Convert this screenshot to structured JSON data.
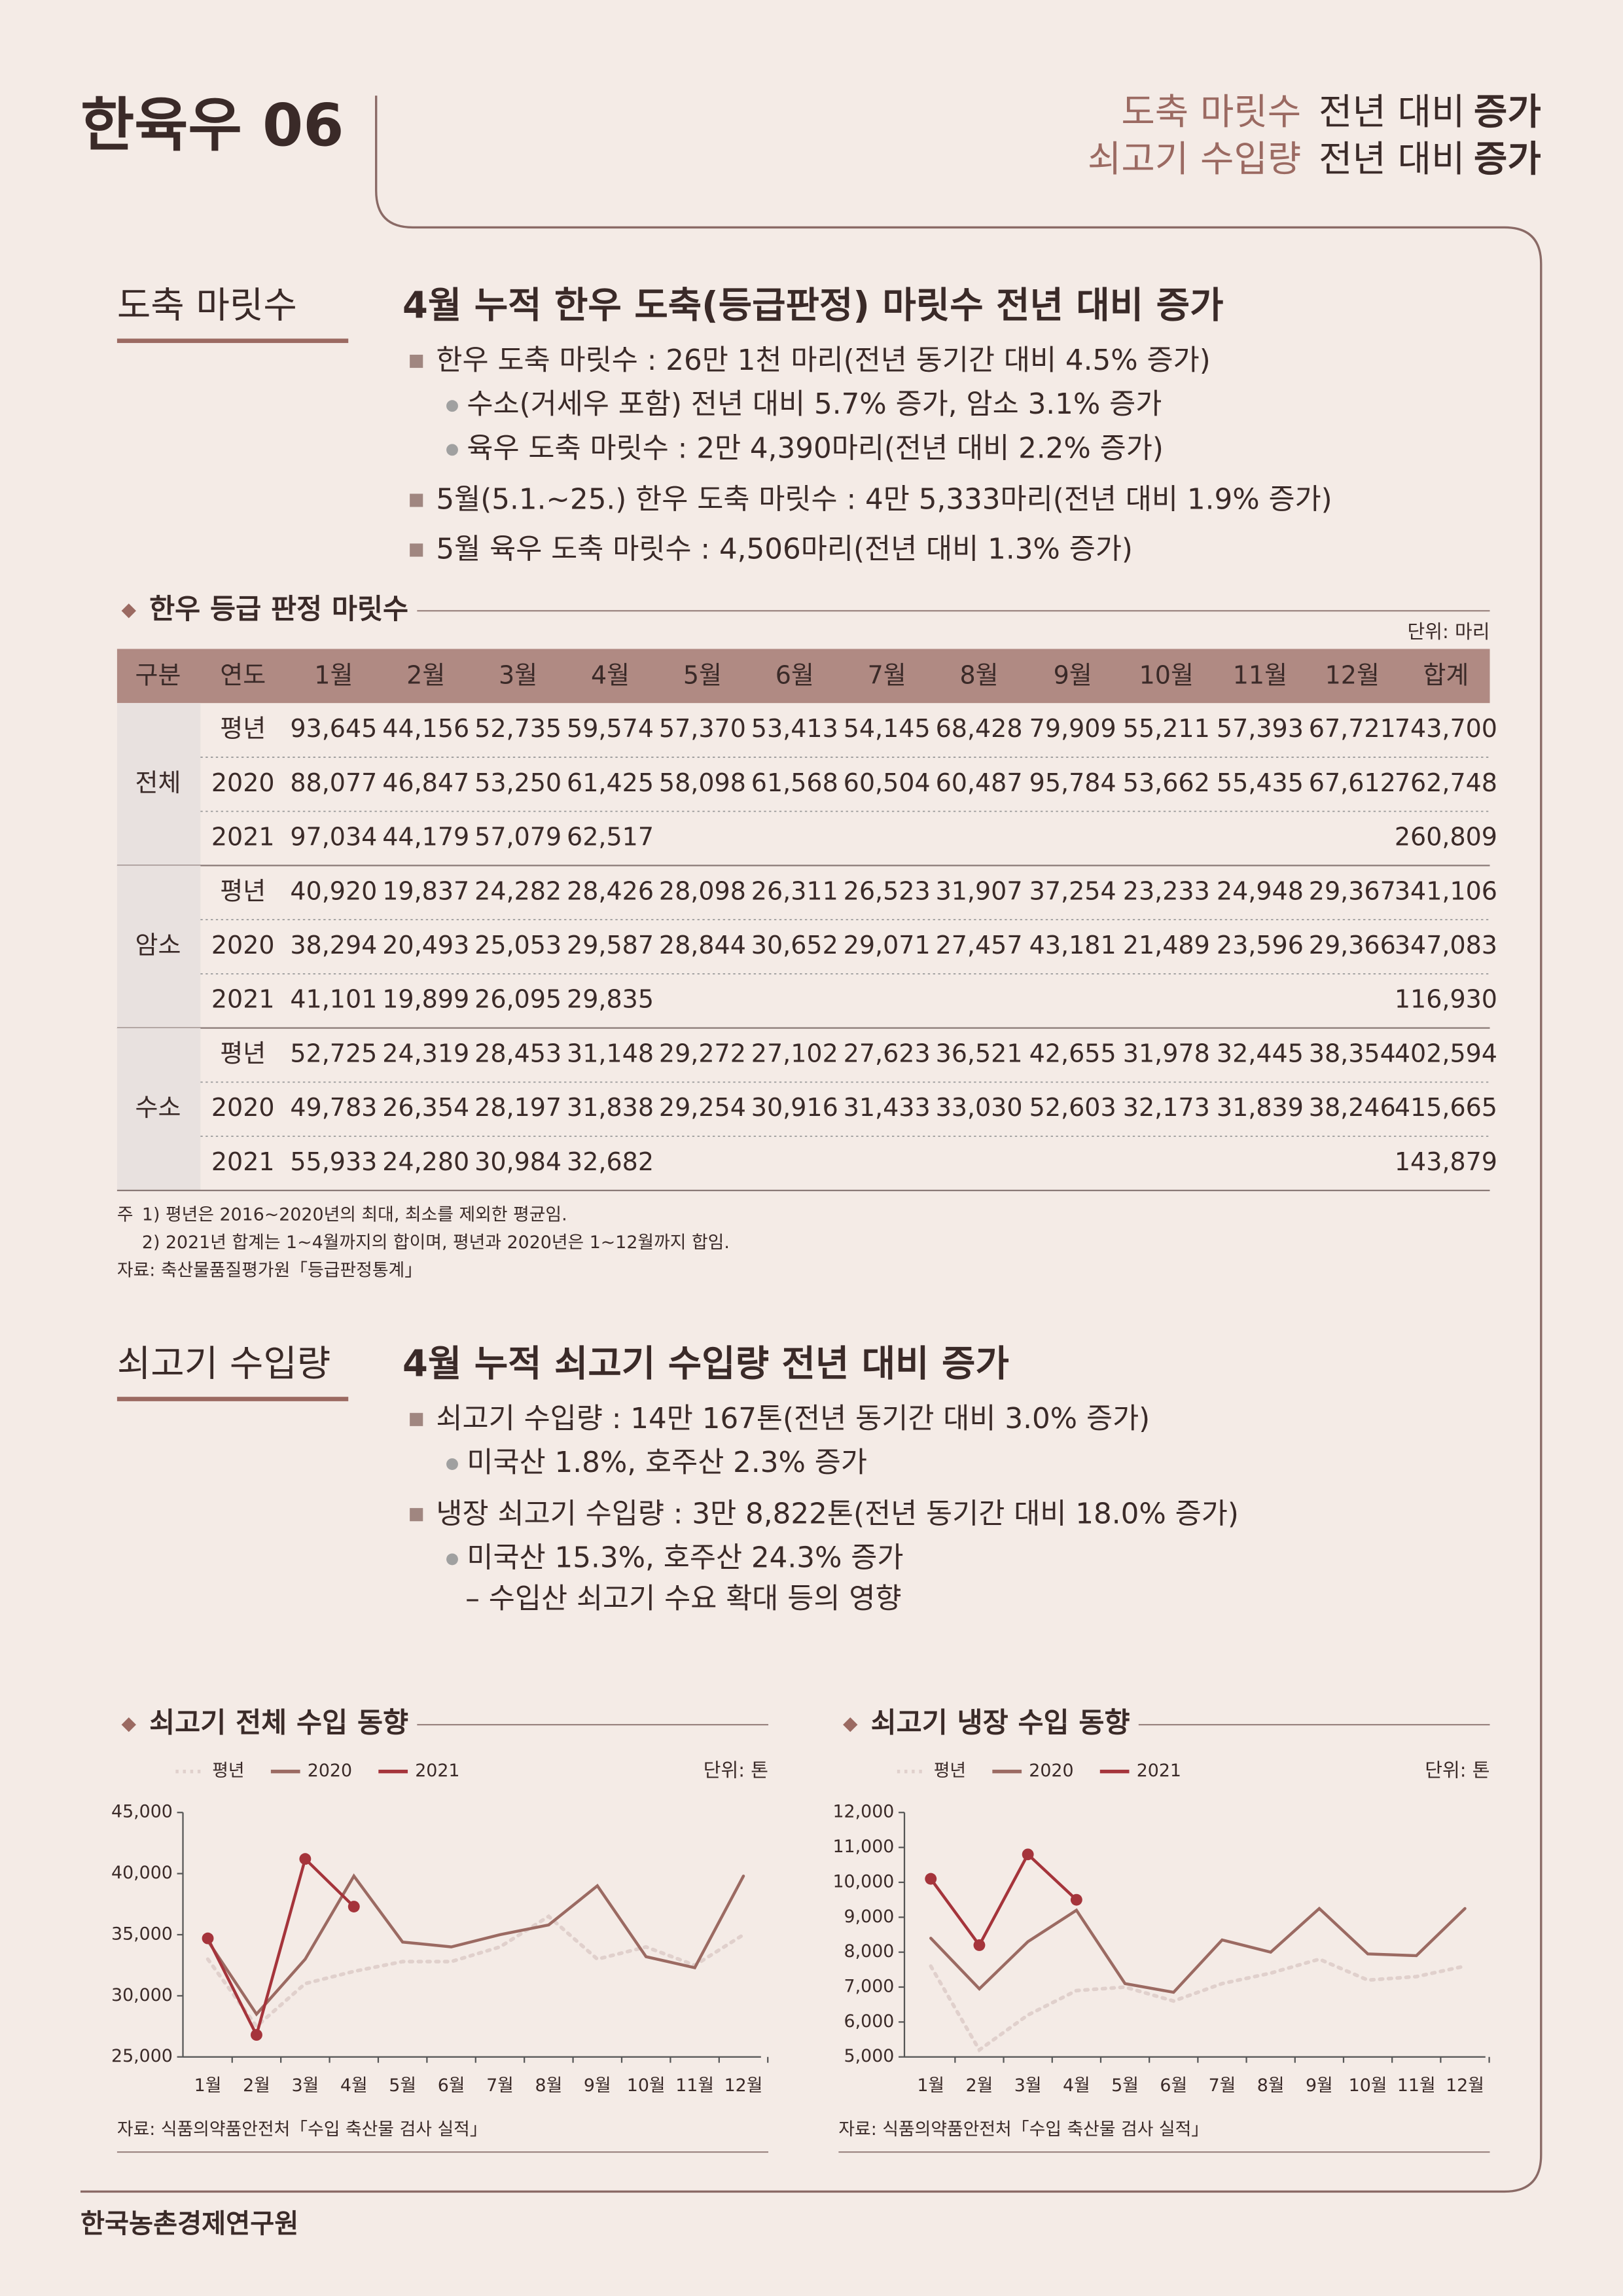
{
  "header": {
    "title": "한육우 06",
    "lines": [
      [
        "도축 마릿수",
        "전년 대비",
        "증가"
      ],
      [
        "쇠고기 수입량",
        "전년 대비",
        "증가"
      ]
    ]
  },
  "section1": {
    "label": "도축 마릿수",
    "headline": "4월 누적 한우 도축(등급판정) 마릿수 전년 대비 증가",
    "bullets": [
      {
        "text": "한우 도축 마릿수 : 26만 1천 마리(전년 동기간 대비 4.5% 증가)",
        "subs": [
          {
            "text": "수소(거세우 포함) 전년 대비 5.7% 증가, 암소 3.1% 증가"
          },
          {
            "text": "육우 도축 마릿수 : 2만 4,390마리(전년 대비 2.2% 증가)"
          }
        ]
      },
      {
        "text": "5월(5.1.~25.) 한우 도축 마릿수 : 4만 5,333마리(전년 대비 1.9% 증가)",
        "subs": []
      },
      {
        "text": "5월 육우 도축 마릿수 : 4,506마리(전년 대비 1.3% 증가)",
        "subs": []
      }
    ]
  },
  "table": {
    "title": "한우 등급 판정 마릿수",
    "unit": "단위: 마리",
    "headers": [
      "구분",
      "연도",
      "1월",
      "2월",
      "3월",
      "4월",
      "5월",
      "6월",
      "7월",
      "8월",
      "9월",
      "10월",
      "11월",
      "12월",
      "합계"
    ],
    "groups": [
      {
        "name": "전체",
        "rows": [
          {
            "year": "평년",
            "values": [
              "93,645",
              "44,156",
              "52,735",
              "59,574",
              "57,370",
              "53,413",
              "54,145",
              "68,428",
              "79,909",
              "55,211",
              "57,393",
              "67,721"
            ],
            "total": "743,700"
          },
          {
            "year": "2020",
            "values": [
              "88,077",
              "46,847",
              "53,250",
              "61,425",
              "58,098",
              "61,568",
              "60,504",
              "60,487",
              "95,784",
              "53,662",
              "55,435",
              "67,612"
            ],
            "total": "762,748"
          },
          {
            "year": "2021",
            "values": [
              "97,034",
              "44,179",
              "57,079",
              "62,517"
            ],
            "total": "260,809"
          }
        ]
      },
      {
        "name": "암소",
        "rows": [
          {
            "year": "평년",
            "values": [
              "40,920",
              "19,837",
              "24,282",
              "28,426",
              "28,098",
              "26,311",
              "26,523",
              "31,907",
              "37,254",
              "23,233",
              "24,948",
              "29,367"
            ],
            "total": "341,106"
          },
          {
            "year": "2020",
            "values": [
              "38,294",
              "20,493",
              "25,053",
              "29,587",
              "28,844",
              "30,652",
              "29,071",
              "27,457",
              "43,181",
              "21,489",
              "23,596",
              "29,366"
            ],
            "total": "347,083"
          },
          {
            "year": "2021",
            "values": [
              "41,101",
              "19,899",
              "26,095",
              "29,835"
            ],
            "total": "116,930"
          }
        ]
      },
      {
        "name": "수소",
        "rows": [
          {
            "year": "평년",
            "values": [
              "52,725",
              "24,319",
              "28,453",
              "31,148",
              "29,272",
              "27,102",
              "27,623",
              "36,521",
              "42,655",
              "31,978",
              "32,445",
              "38,354"
            ],
            "total": "402,594"
          },
          {
            "year": "2020",
            "values": [
              "49,783",
              "26,354",
              "28,197",
              "31,838",
              "29,254",
              "30,916",
              "31,433",
              "33,030",
              "52,603",
              "32,173",
              "31,839",
              "38,246"
            ],
            "total": "415,665"
          },
          {
            "year": "2021",
            "values": [
              "55,933",
              "24,280",
              "30,984",
              "32,682"
            ],
            "total": "143,879"
          }
        ]
      }
    ],
    "notes_label": "주",
    "notes": [
      "1) 평년은 2016~2020년의 최대, 최소를 제외한 평균임.",
      "2) 2021년 합계는 1~4월까지의 합이며, 평년과 2020년은 1~12월까지 합임."
    ],
    "source": "자료: 축산물품질평가원「등급판정통계」"
  },
  "section2": {
    "label": "쇠고기 수입량",
    "headline": "4월 누적 쇠고기 수입량 전년 대비 증가",
    "bullets": [
      {
        "text": "쇠고기 수입량 : 14만 167톤(전년 동기간 대비 3.0% 증가)",
        "subs": [
          {
            "text": "미국산 1.8%, 호주산 2.3% 증가"
          }
        ]
      },
      {
        "text": "냉장 쇠고기 수입량 : 3만 8,822톤(전년 동기간 대비 18.0% 증가)",
        "subs": [
          {
            "text": "미국산 15.3%, 호주산 24.3% 증가",
            "dash": "– 수입산 쇠고기 수요 확대 등의 영향"
          }
        ]
      }
    ]
  },
  "chart_data": [
    {
      "type": "line",
      "title": "쇠고기 전체 수입 동향",
      "unit": "단위: 톤",
      "source": "자료: 식품의약품안전처「수입 축산물 검사 실적」",
      "categories": [
        "1월",
        "2월",
        "3월",
        "4월",
        "5월",
        "6월",
        "7월",
        "8월",
        "9월",
        "10월",
        "11월",
        "12월"
      ],
      "series": [
        {
          "name": "평년",
          "color": "#e0d0cc",
          "style": "dotted",
          "values": [
            33000,
            27500,
            31000,
            32000,
            32800,
            32800,
            34000,
            36500,
            33000,
            34000,
            32500,
            35000
          ]
        },
        {
          "name": "2020",
          "color": "#9b6a62",
          "values": [
            34500,
            28500,
            33000,
            39800,
            34400,
            34000,
            35000,
            35800,
            39000,
            33200,
            32300,
            39800
          ]
        },
        {
          "name": "2021",
          "color": "#a5343b",
          "markers": true,
          "values": [
            34700,
            26800,
            41200,
            37300,
            null,
            null,
            null,
            null,
            null,
            null,
            null,
            null
          ]
        }
      ],
      "ylim": [
        25000,
        45000
      ],
      "yticks": [
        {
          "value": 25000,
          "label": "25,000"
        },
        {
          "value": 30000,
          "label": "30,000"
        },
        {
          "value": 35000,
          "label": "35,000"
        },
        {
          "value": 40000,
          "label": "40,000"
        },
        {
          "value": 45000,
          "label": "45,000"
        }
      ]
    },
    {
      "type": "line",
      "title": "쇠고기 냉장 수입 동향",
      "unit": "단위: 톤",
      "source": "자료: 식품의약품안전처「수입 축산물 검사 실적」",
      "categories": [
        "1월",
        "2월",
        "3월",
        "4월",
        "5월",
        "6월",
        "7월",
        "8월",
        "9월",
        "10월",
        "11월",
        "12월"
      ],
      "series": [
        {
          "name": "평년",
          "color": "#e0d0cc",
          "style": "dotted",
          "values": [
            7600,
            5200,
            6200,
            6900,
            7000,
            6600,
            7100,
            7400,
            7800,
            7200,
            7300,
            7600
          ]
        },
        {
          "name": "2020",
          "color": "#9b6a62",
          "values": [
            8400,
            6950,
            8300,
            9200,
            7100,
            6850,
            8350,
            8000,
            9250,
            7950,
            7900,
            9250
          ]
        },
        {
          "name": "2021",
          "color": "#a5343b",
          "markers": true,
          "values": [
            10100,
            8200,
            10800,
            9500,
            null,
            null,
            null,
            null,
            null,
            null,
            null,
            null
          ]
        }
      ],
      "ylim": [
        5000,
        12000
      ],
      "yticks": [
        {
          "value": 5000,
          "label": "5,000"
        },
        {
          "value": 6000,
          "label": "6,000"
        },
        {
          "value": 7000,
          "label": "7,000"
        },
        {
          "value": 8000,
          "label": "8,000"
        },
        {
          "value": 9000,
          "label": "9,000"
        },
        {
          "value": 10000,
          "label": "10,000"
        },
        {
          "value": 11000,
          "label": "11,000"
        },
        {
          "value": 12000,
          "label": "12,000"
        }
      ]
    }
  ],
  "footer": "한국농촌경제연구원"
}
